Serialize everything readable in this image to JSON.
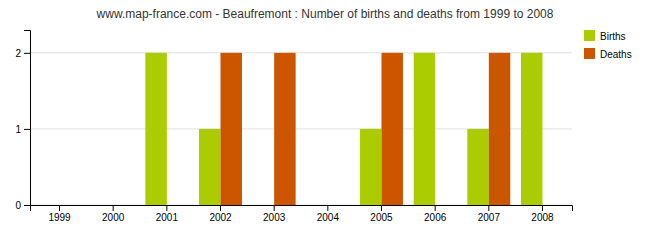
{
  "chart_data": {
    "type": "bar",
    "title": "www.map-france.com - Beaufremont : Number of births and deaths from 1999 to 2008",
    "categories": [
      "1999",
      "2000",
      "2001",
      "2002",
      "2003",
      "2004",
      "2005",
      "2006",
      "2007",
      "2008"
    ],
    "series": [
      {
        "name": "Births",
        "color": "#aacc00",
        "values": [
          0,
          0,
          2,
          1,
          0,
          0,
          1,
          2,
          1,
          2
        ]
      },
      {
        "name": "Deaths",
        "color": "#cc5500",
        "values": [
          0,
          0,
          0,
          2,
          2,
          0,
          2,
          0,
          2,
          0
        ]
      }
    ],
    "ylim": [
      0,
      2.3
    ],
    "yticks": [
      0,
      1,
      2
    ],
    "grid": true,
    "legend": "upper right"
  }
}
